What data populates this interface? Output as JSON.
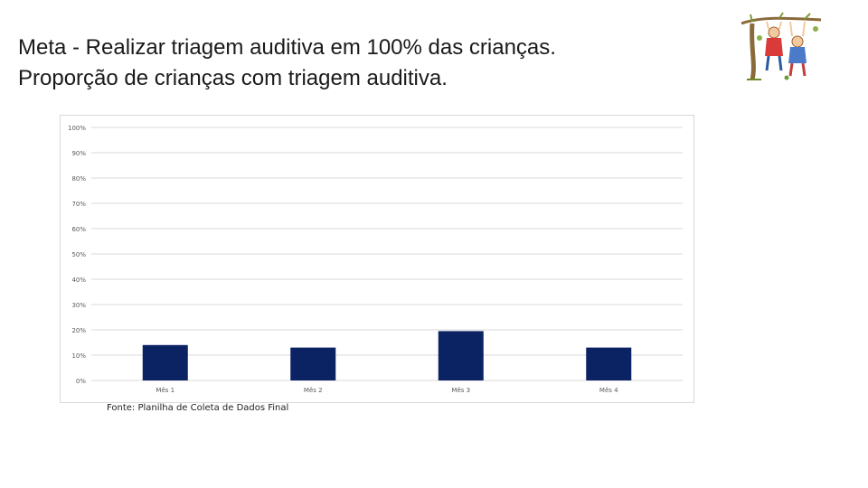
{
  "slide": {
    "title_line1": "Meta - Realizar triagem auditiva em 100% das crianças.",
    "title_line2": "Proporção de crianças com triagem auditiva.",
    "source": "Fonte: Planilha de Coleta de Dados Final"
  },
  "illustration": {
    "icon": "children-on-tree-branch-illustration"
  },
  "colors": {
    "bar": "#0b2263",
    "grid": "#d9d9d9",
    "axis_text": "#595959"
  },
  "chart_data": {
    "type": "bar",
    "categories": [
      "Mês 1",
      "Mês 2",
      "Mês 3",
      "Mês 4"
    ],
    "values": [
      14,
      13,
      19.5,
      13
    ],
    "title": "",
    "xlabel": "",
    "ylabel": "",
    "ylim": [
      0,
      100
    ],
    "yticks": [
      "0%",
      "10%",
      "20%",
      "30%",
      "40%",
      "50%",
      "60%",
      "70%",
      "80%",
      "90%",
      "100%"
    ],
    "ytick_values": [
      0,
      10,
      20,
      30,
      40,
      50,
      60,
      70,
      80,
      90,
      100
    ],
    "grid": true,
    "legend": "none"
  }
}
